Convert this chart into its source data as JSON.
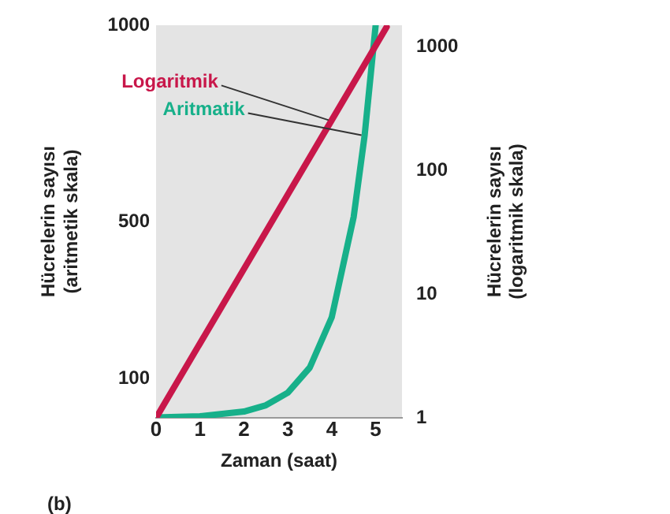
{
  "chart_data": {
    "type": "line",
    "xlabel": "Zaman (saat)",
    "ylabel": "Hücrelerin sayısı (aritmetik skala)",
    "y2label": "Hücrelerin sayısı (logaritmik skala)",
    "xlim": [
      0,
      5.6
    ],
    "xticks": [
      0,
      1,
      2,
      3,
      4,
      5
    ],
    "ylim": [
      0,
      1000
    ],
    "yticks": [
      100,
      500,
      1000
    ],
    "y2lim": [
      1,
      1500
    ],
    "y2ticks": [
      1,
      10,
      100,
      1000
    ],
    "log": "y2",
    "series": [
      {
        "name": "Logaritmik",
        "color": "#c8174a",
        "axis": "y2",
        "x": [
          0,
          1,
          2,
          3,
          4,
          5,
          5.25
        ],
        "values": [
          1,
          4,
          16,
          64,
          256,
          1024,
          1450
        ]
      },
      {
        "name": "Aritmatik",
        "color": "#17b08a",
        "axis": "y",
        "x": [
          0,
          1,
          2,
          2.5,
          3,
          3.5,
          4,
          4.5,
          4.75,
          5
        ],
        "values": [
          1,
          4,
          16,
          32,
          64,
          128,
          256,
          512,
          720,
          1000
        ]
      }
    ],
    "annotations": [
      "(b)"
    ],
    "grid": false,
    "legend": false,
    "marker": "none",
    "line_style": "solid"
  }
}
